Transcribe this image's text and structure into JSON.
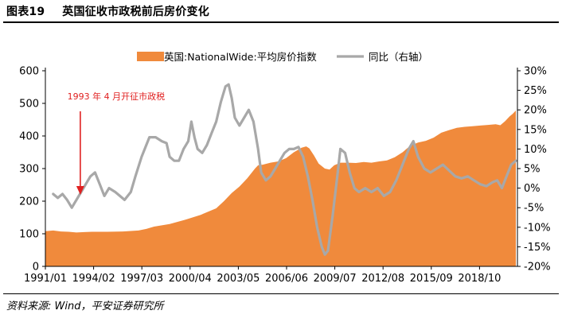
{
  "figure": {
    "number": "图表19",
    "title": "英国征收市政税前后房价变化",
    "source": "资料来源: Wind，平安证券研究所"
  },
  "chart_data": {
    "type": "area",
    "title": "图表19 英国征收市政税前后房价变化",
    "x_tick_labels": [
      "1991/01",
      "1994/02",
      "1997/03",
      "2000/04",
      "2003/05",
      "2006/06",
      "2009/07",
      "2012/08",
      "2015/09",
      "2018/10"
    ],
    "x_range": [
      1991.0,
      2021.4
    ],
    "y_left": {
      "min": 0,
      "max": 600,
      "step": 100,
      "tick_labels": [
        "0",
        "100",
        "200",
        "300",
        "400",
        "500",
        "600"
      ]
    },
    "y_right": {
      "min": -20,
      "max": 30,
      "step": 5,
      "tick_labels": [
        "-20%",
        "-15%",
        "-10%",
        "-5%",
        "0%",
        "5%",
        "10%",
        "15%",
        "20%",
        "25%",
        "30%"
      ]
    },
    "legend": {
      "placement": "top-center",
      "entries": [
        "英国:NationalWide:平均房价指数",
        "同比（右轴）"
      ]
    },
    "annotation": {
      "text": "1993 年 4 月开征市政税",
      "x": 1993.25,
      "color": "#e02020"
    },
    "series": [
      {
        "name": "英国:NationalWide:平均房价指数",
        "kind": "area",
        "axis": "left",
        "color": "#f08a3c",
        "points": [
          [
            1991.0,
            108
          ],
          [
            1991.5,
            110
          ],
          [
            1992.0,
            107
          ],
          [
            1992.5,
            106
          ],
          [
            1993.0,
            104
          ],
          [
            1993.5,
            105
          ],
          [
            1994.0,
            106
          ],
          [
            1995.0,
            106
          ],
          [
            1996.0,
            107
          ],
          [
            1997.0,
            110
          ],
          [
            1997.5,
            115
          ],
          [
            1998.0,
            122
          ],
          [
            1999.0,
            130
          ],
          [
            2000.0,
            143
          ],
          [
            2001.0,
            158
          ],
          [
            2002.0,
            178
          ],
          [
            2002.5,
            200
          ],
          [
            2003.0,
            225
          ],
          [
            2003.5,
            245
          ],
          [
            2004.0,
            270
          ],
          [
            2004.5,
            300
          ],
          [
            2004.7,
            310
          ],
          [
            2005.0,
            312
          ],
          [
            2005.5,
            318
          ],
          [
            2006.0,
            322
          ],
          [
            2006.5,
            332
          ],
          [
            2007.0,
            350
          ],
          [
            2007.5,
            364
          ],
          [
            2007.8,
            368
          ],
          [
            2008.0,
            362
          ],
          [
            2008.3,
            340
          ],
          [
            2008.6,
            315
          ],
          [
            2009.0,
            300
          ],
          [
            2009.3,
            297
          ],
          [
            2009.6,
            310
          ],
          [
            2010.0,
            318
          ],
          [
            2010.5,
            318
          ],
          [
            2011.0,
            317
          ],
          [
            2011.5,
            320
          ],
          [
            2012.0,
            318
          ],
          [
            2012.5,
            322
          ],
          [
            2013.0,
            325
          ],
          [
            2013.5,
            335
          ],
          [
            2014.0,
            350
          ],
          [
            2014.5,
            370
          ],
          [
            2015.0,
            380
          ],
          [
            2015.5,
            385
          ],
          [
            2016.0,
            395
          ],
          [
            2016.5,
            410
          ],
          [
            2017.0,
            418
          ],
          [
            2017.5,
            425
          ],
          [
            2018.0,
            428
          ],
          [
            2018.5,
            430
          ],
          [
            2019.0,
            432
          ],
          [
            2019.5,
            434
          ],
          [
            2020.0,
            436
          ],
          [
            2020.3,
            433
          ],
          [
            2020.6,
            445
          ],
          [
            2020.9,
            460
          ],
          [
            2021.1,
            468
          ],
          [
            2021.3,
            478
          ]
        ]
      },
      {
        "name": "同比（右轴）",
        "kind": "line",
        "axis": "right",
        "color": "#a8a8a8",
        "points": [
          [
            1991.5,
            -1.5
          ],
          [
            1991.8,
            -2.5
          ],
          [
            1992.1,
            -1.5
          ],
          [
            1992.4,
            -3
          ],
          [
            1992.7,
            -5
          ],
          [
            1993.0,
            -3
          ],
          [
            1993.3,
            -1
          ],
          [
            1993.6,
            1
          ],
          [
            1993.9,
            3
          ],
          [
            1994.2,
            4
          ],
          [
            1994.5,
            1
          ],
          [
            1994.8,
            -2
          ],
          [
            1995.1,
            0
          ],
          [
            1995.5,
            -1
          ],
          [
            1995.8,
            -2
          ],
          [
            1996.1,
            -3
          ],
          [
            1996.5,
            -1
          ],
          [
            1996.8,
            3
          ],
          [
            1997.2,
            8
          ],
          [
            1997.7,
            13
          ],
          [
            1998.1,
            13
          ],
          [
            1998.5,
            12
          ],
          [
            1998.8,
            11.5
          ],
          [
            1999.0,
            8
          ],
          [
            1999.3,
            7
          ],
          [
            1999.6,
            7
          ],
          [
            1999.9,
            10
          ],
          [
            2000.2,
            12
          ],
          [
            2000.4,
            17
          ],
          [
            2000.6,
            13
          ],
          [
            2000.8,
            10
          ],
          [
            2001.1,
            9
          ],
          [
            2001.4,
            11
          ],
          [
            2001.7,
            14
          ],
          [
            2002.0,
            17
          ],
          [
            2002.3,
            22
          ],
          [
            2002.6,
            26
          ],
          [
            2002.8,
            26.5
          ],
          [
            2003.0,
            23
          ],
          [
            2003.2,
            18
          ],
          [
            2003.5,
            16
          ],
          [
            2003.8,
            18
          ],
          [
            2004.1,
            20
          ],
          [
            2004.4,
            17
          ],
          [
            2004.7,
            10
          ],
          [
            2004.9,
            4
          ],
          [
            2005.2,
            2
          ],
          [
            2005.5,
            3
          ],
          [
            2005.8,
            5
          ],
          [
            2006.1,
            7
          ],
          [
            2006.4,
            9
          ],
          [
            2006.7,
            10
          ],
          [
            2007.0,
            10
          ],
          [
            2007.3,
            10.5
          ],
          [
            2007.6,
            8
          ],
          [
            2007.9,
            3
          ],
          [
            2008.2,
            -3
          ],
          [
            2008.5,
            -10
          ],
          [
            2008.8,
            -15
          ],
          [
            2009.0,
            -17
          ],
          [
            2009.2,
            -16
          ],
          [
            2009.5,
            -7
          ],
          [
            2009.8,
            3
          ],
          [
            2010.0,
            10
          ],
          [
            2010.3,
            9
          ],
          [
            2010.6,
            4
          ],
          [
            2010.9,
            0
          ],
          [
            2011.2,
            -1
          ],
          [
            2011.6,
            0
          ],
          [
            2012.0,
            -1
          ],
          [
            2012.4,
            0
          ],
          [
            2012.8,
            -2
          ],
          [
            2013.2,
            -1
          ],
          [
            2013.6,
            2
          ],
          [
            2014.0,
            6
          ],
          [
            2014.4,
            10
          ],
          [
            2014.7,
            12
          ],
          [
            2015.0,
            8
          ],
          [
            2015.4,
            5
          ],
          [
            2015.8,
            4
          ],
          [
            2016.2,
            5
          ],
          [
            2016.6,
            6
          ],
          [
            2017.0,
            4.5
          ],
          [
            2017.4,
            3
          ],
          [
            2017.8,
            2.5
          ],
          [
            2018.2,
            3
          ],
          [
            2018.6,
            2
          ],
          [
            2019.0,
            1
          ],
          [
            2019.4,
            0.5
          ],
          [
            2019.8,
            1.5
          ],
          [
            2020.1,
            2
          ],
          [
            2020.4,
            0
          ],
          [
            2020.7,
            3
          ],
          [
            2021.0,
            6
          ],
          [
            2021.3,
            7
          ]
        ]
      }
    ]
  }
}
